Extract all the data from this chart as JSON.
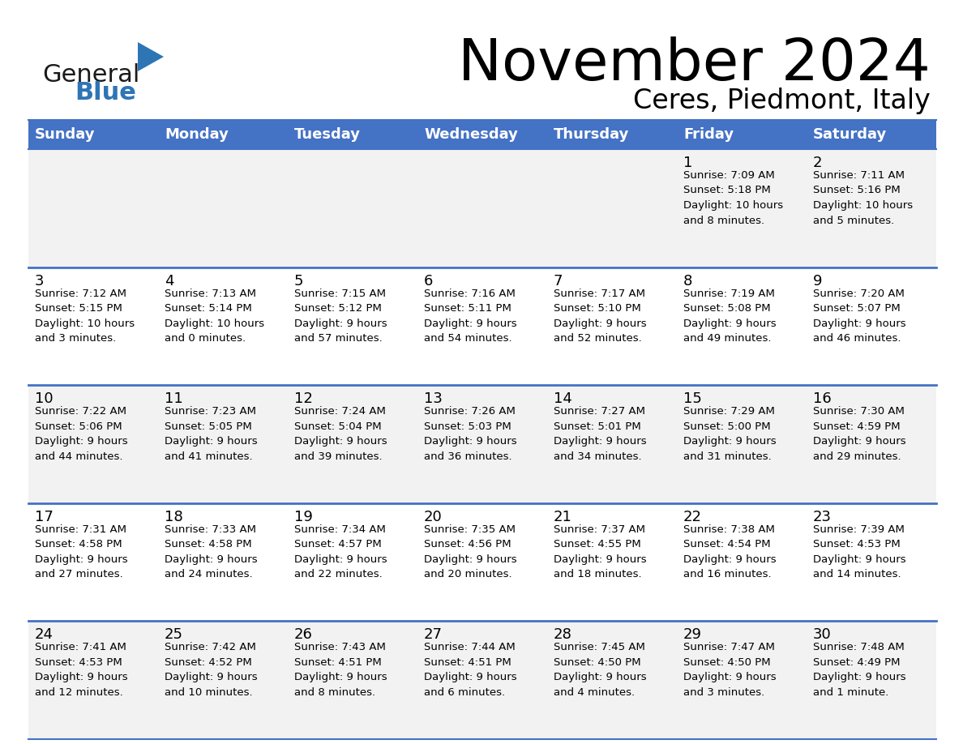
{
  "title": "November 2024",
  "subtitle": "Ceres, Piedmont, Italy",
  "days_of_week": [
    "Sunday",
    "Monday",
    "Tuesday",
    "Wednesday",
    "Thursday",
    "Friday",
    "Saturday"
  ],
  "header_bg": "#4472C4",
  "header_text": "#FFFFFF",
  "row_bg_light": "#F2F2F2",
  "row_bg_white": "#FFFFFF",
  "cell_text": "#000000",
  "separator_color": "#4472C4",
  "title_color": "#000000",
  "subtitle_color": "#000000",
  "logo_general_color": "#1a1a1a",
  "logo_blue_color": "#2E75B6",
  "logo_triangle_color": "#2E75B6",
  "weeks": [
    {
      "days": [
        {
          "day": null,
          "info": null
        },
        {
          "day": null,
          "info": null
        },
        {
          "day": null,
          "info": null
        },
        {
          "day": null,
          "info": null
        },
        {
          "day": null,
          "info": null
        },
        {
          "day": 1,
          "info": "Sunrise: 7:09 AM\nSunset: 5:18 PM\nDaylight: 10 hours\nand 8 minutes."
        },
        {
          "day": 2,
          "info": "Sunrise: 7:11 AM\nSunset: 5:16 PM\nDaylight: 10 hours\nand 5 minutes."
        }
      ]
    },
    {
      "days": [
        {
          "day": 3,
          "info": "Sunrise: 7:12 AM\nSunset: 5:15 PM\nDaylight: 10 hours\nand 3 minutes."
        },
        {
          "day": 4,
          "info": "Sunrise: 7:13 AM\nSunset: 5:14 PM\nDaylight: 10 hours\nand 0 minutes."
        },
        {
          "day": 5,
          "info": "Sunrise: 7:15 AM\nSunset: 5:12 PM\nDaylight: 9 hours\nand 57 minutes."
        },
        {
          "day": 6,
          "info": "Sunrise: 7:16 AM\nSunset: 5:11 PM\nDaylight: 9 hours\nand 54 minutes."
        },
        {
          "day": 7,
          "info": "Sunrise: 7:17 AM\nSunset: 5:10 PM\nDaylight: 9 hours\nand 52 minutes."
        },
        {
          "day": 8,
          "info": "Sunrise: 7:19 AM\nSunset: 5:08 PM\nDaylight: 9 hours\nand 49 minutes."
        },
        {
          "day": 9,
          "info": "Sunrise: 7:20 AM\nSunset: 5:07 PM\nDaylight: 9 hours\nand 46 minutes."
        }
      ]
    },
    {
      "days": [
        {
          "day": 10,
          "info": "Sunrise: 7:22 AM\nSunset: 5:06 PM\nDaylight: 9 hours\nand 44 minutes."
        },
        {
          "day": 11,
          "info": "Sunrise: 7:23 AM\nSunset: 5:05 PM\nDaylight: 9 hours\nand 41 minutes."
        },
        {
          "day": 12,
          "info": "Sunrise: 7:24 AM\nSunset: 5:04 PM\nDaylight: 9 hours\nand 39 minutes."
        },
        {
          "day": 13,
          "info": "Sunrise: 7:26 AM\nSunset: 5:03 PM\nDaylight: 9 hours\nand 36 minutes."
        },
        {
          "day": 14,
          "info": "Sunrise: 7:27 AM\nSunset: 5:01 PM\nDaylight: 9 hours\nand 34 minutes."
        },
        {
          "day": 15,
          "info": "Sunrise: 7:29 AM\nSunset: 5:00 PM\nDaylight: 9 hours\nand 31 minutes."
        },
        {
          "day": 16,
          "info": "Sunrise: 7:30 AM\nSunset: 4:59 PM\nDaylight: 9 hours\nand 29 minutes."
        }
      ]
    },
    {
      "days": [
        {
          "day": 17,
          "info": "Sunrise: 7:31 AM\nSunset: 4:58 PM\nDaylight: 9 hours\nand 27 minutes."
        },
        {
          "day": 18,
          "info": "Sunrise: 7:33 AM\nSunset: 4:58 PM\nDaylight: 9 hours\nand 24 minutes."
        },
        {
          "day": 19,
          "info": "Sunrise: 7:34 AM\nSunset: 4:57 PM\nDaylight: 9 hours\nand 22 minutes."
        },
        {
          "day": 20,
          "info": "Sunrise: 7:35 AM\nSunset: 4:56 PM\nDaylight: 9 hours\nand 20 minutes."
        },
        {
          "day": 21,
          "info": "Sunrise: 7:37 AM\nSunset: 4:55 PM\nDaylight: 9 hours\nand 18 minutes."
        },
        {
          "day": 22,
          "info": "Sunrise: 7:38 AM\nSunset: 4:54 PM\nDaylight: 9 hours\nand 16 minutes."
        },
        {
          "day": 23,
          "info": "Sunrise: 7:39 AM\nSunset: 4:53 PM\nDaylight: 9 hours\nand 14 minutes."
        }
      ]
    },
    {
      "days": [
        {
          "day": 24,
          "info": "Sunrise: 7:41 AM\nSunset: 4:53 PM\nDaylight: 9 hours\nand 12 minutes."
        },
        {
          "day": 25,
          "info": "Sunrise: 7:42 AM\nSunset: 4:52 PM\nDaylight: 9 hours\nand 10 minutes."
        },
        {
          "day": 26,
          "info": "Sunrise: 7:43 AM\nSunset: 4:51 PM\nDaylight: 9 hours\nand 8 minutes."
        },
        {
          "day": 27,
          "info": "Sunrise: 7:44 AM\nSunset: 4:51 PM\nDaylight: 9 hours\nand 6 minutes."
        },
        {
          "day": 28,
          "info": "Sunrise: 7:45 AM\nSunset: 4:50 PM\nDaylight: 9 hours\nand 4 minutes."
        },
        {
          "day": 29,
          "info": "Sunrise: 7:47 AM\nSunset: 4:50 PM\nDaylight: 9 hours\nand 3 minutes."
        },
        {
          "day": 30,
          "info": "Sunrise: 7:48 AM\nSunset: 4:49 PM\nDaylight: 9 hours\nand 1 minute."
        }
      ]
    }
  ]
}
